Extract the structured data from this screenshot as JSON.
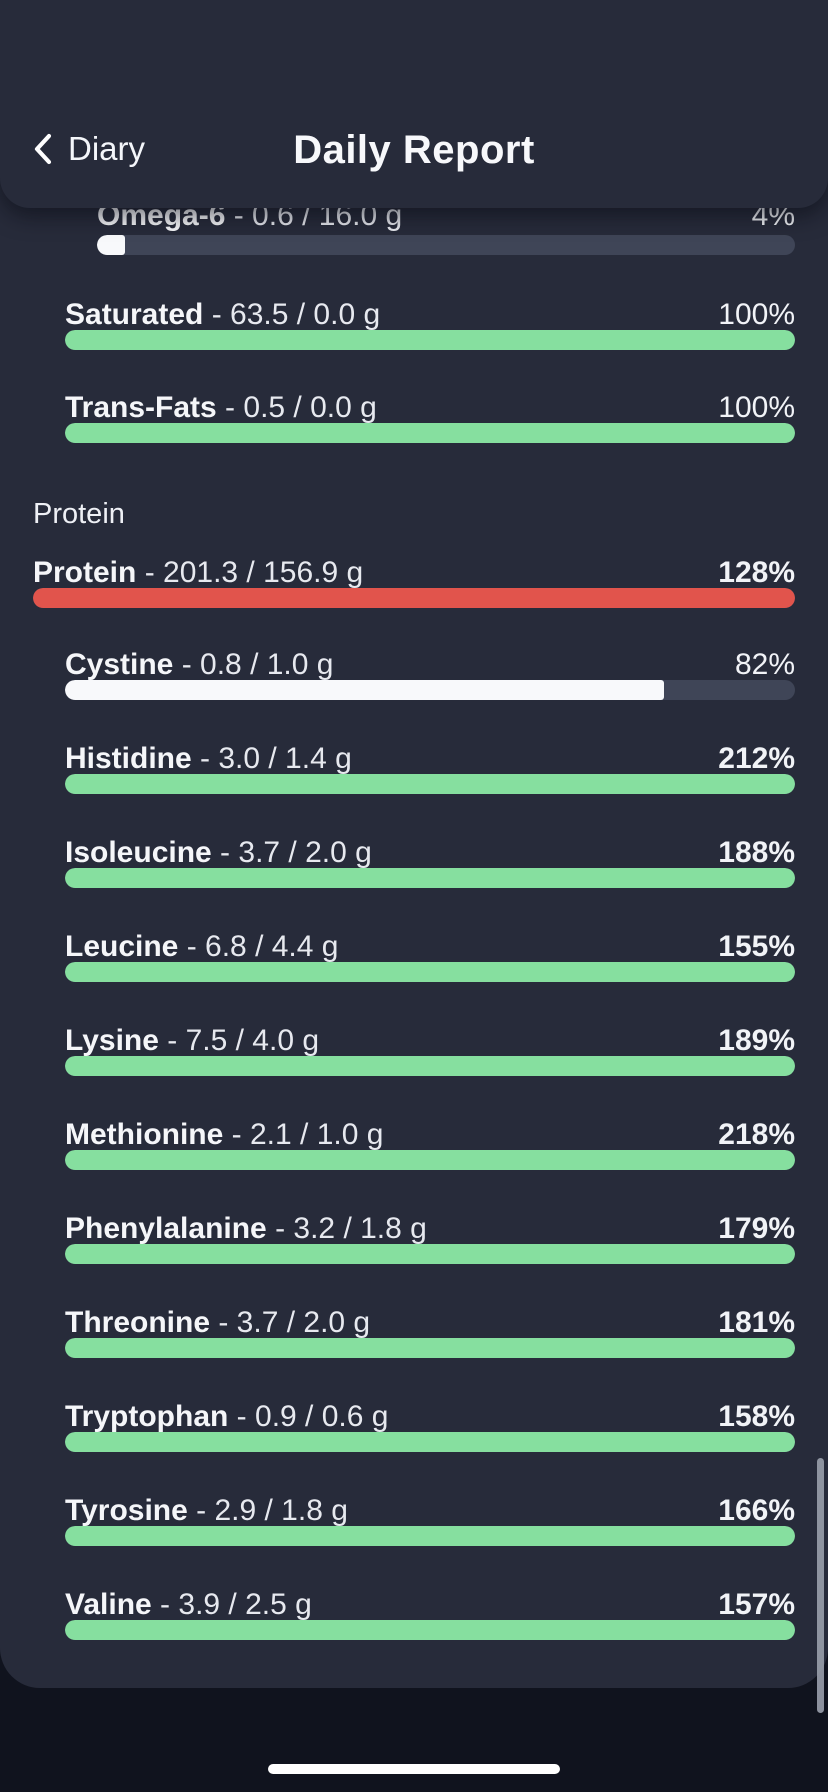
{
  "app": {
    "back_label": "Diary",
    "title": "Daily Report"
  },
  "icons": {
    "back": "chevron-left-icon"
  },
  "colors": {
    "background": "#10131e",
    "surface": "#272b3a",
    "track": "#3f4557",
    "green": "#86df9f",
    "red": "#e1544c",
    "white_fill": "#f8f9fb",
    "scrollbar": "#9aa0ac",
    "text_primary": "#f4f6fa",
    "text_secondary": "#e7e9ef"
  },
  "section": {
    "label": "Protein"
  },
  "rows": [
    {
      "name": "Omega-6",
      "amount": "0.6",
      "target": "16.0",
      "unit": "g",
      "percent": "4%",
      "fill": "white",
      "indent": 2
    },
    {
      "name": "Saturated",
      "amount": "63.5",
      "target": "0.0",
      "unit": "g",
      "percent": "100%",
      "fill": "green",
      "indent": 1
    },
    {
      "name": "Trans-Fats",
      "amount": "0.5",
      "target": "0.0",
      "unit": "g",
      "percent": "100%",
      "fill": "green",
      "indent": 1
    },
    {
      "name": "Protein",
      "amount": "201.3",
      "target": "156.9",
      "unit": "g",
      "percent": "128%",
      "fill": "red",
      "indent": 0
    },
    {
      "name": "Cystine",
      "amount": "0.8",
      "target": "1.0",
      "unit": "g",
      "percent": "82%",
      "fill": "white",
      "indent": 1
    },
    {
      "name": "Histidine",
      "amount": "3.0",
      "target": "1.4",
      "unit": "g",
      "percent": "212%",
      "fill": "green",
      "indent": 1
    },
    {
      "name": "Isoleucine",
      "amount": "3.7",
      "target": "2.0",
      "unit": "g",
      "percent": "188%",
      "fill": "green",
      "indent": 1
    },
    {
      "name": "Leucine",
      "amount": "6.8",
      "target": "4.4",
      "unit": "g",
      "percent": "155%",
      "fill": "green",
      "indent": 1
    },
    {
      "name": "Lysine",
      "amount": "7.5",
      "target": "4.0",
      "unit": "g",
      "percent": "189%",
      "fill": "green",
      "indent": 1
    },
    {
      "name": "Methionine",
      "amount": "2.1",
      "target": "1.0",
      "unit": "g",
      "percent": "218%",
      "fill": "green",
      "indent": 1
    },
    {
      "name": "Phenylalanine",
      "amount": "3.2",
      "target": "1.8",
      "unit": "g",
      "percent": "179%",
      "fill": "green",
      "indent": 1
    },
    {
      "name": "Threonine",
      "amount": "3.7",
      "target": "2.0",
      "unit": "g",
      "percent": "181%",
      "fill": "green",
      "indent": 1
    },
    {
      "name": "Tryptophan",
      "amount": "0.9",
      "target": "0.6",
      "unit": "g",
      "percent": "158%",
      "fill": "green",
      "indent": 1
    },
    {
      "name": "Tyrosine",
      "amount": "2.9",
      "target": "1.8",
      "unit": "g",
      "percent": "166%",
      "fill": "green",
      "indent": 1
    },
    {
      "name": "Valine",
      "amount": "3.9",
      "target": "2.5",
      "unit": "g",
      "percent": "157%",
      "fill": "green",
      "indent": 1
    }
  ]
}
